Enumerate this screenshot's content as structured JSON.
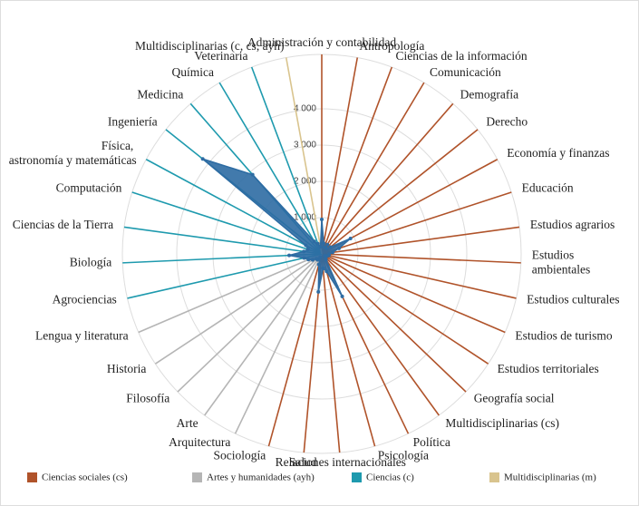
{
  "chart_data": {
    "type": "radar",
    "categories": [
      "Administración y contabilidad",
      "Antropología",
      "Ciencias de la información",
      "Comunicación",
      "Demografía",
      "Derecho",
      "Economía y finanzas",
      "Educación",
      "Estudios agrarios",
      "Estudios ambientales",
      "Estudios culturales",
      "Estudios de turismo",
      "Estudios territoriales",
      "Geografía social",
      "Multidisciplinarias (cs)",
      "Política",
      "Psicología",
      "Relaciones internacionales",
      "Salud",
      "Sociología",
      "Arquitectura",
      "Arte",
      "Filosofía",
      "Historia",
      "Lengua y literatura",
      "Agrociencias",
      "Biología",
      "Ciencias de la Tierra",
      "Computación",
      "Física, astronomía y matemáticas",
      "Ingeniería",
      "Medicina",
      "Química",
      "Veterinaria",
      "Multidisciplinarias (c, cs, ayh)"
    ],
    "values": [
      950,
      300,
      200,
      300,
      200,
      300,
      900,
      500,
      300,
      200,
      200,
      150,
      100,
      150,
      200,
      1300,
      500,
      400,
      1050,
      300,
      100,
      200,
      200,
      300,
      400,
      500,
      900,
      500,
      400,
      500,
      4200,
      2900,
      400,
      300,
      200
    ],
    "color": "#2e6ca3",
    "groups": [
      {
        "name": "Ciencias sociales (cs)",
        "color": "#b0532a"
      },
      {
        "name": "Artes y humanidades (ayh)",
        "color": "#b5b5b5"
      },
      {
        "name": "Ciencias (c)",
        "color": "#1e9aae"
      },
      {
        "name": "Multidisciplinarias (m)",
        "color": "#d9c48e"
      }
    ],
    "category_groups": [
      0,
      0,
      0,
      0,
      0,
      0,
      0,
      0,
      0,
      0,
      0,
      0,
      0,
      0,
      0,
      0,
      0,
      0,
      0,
      0,
      1,
      1,
      1,
      1,
      1,
      2,
      2,
      2,
      2,
      2,
      2,
      2,
      2,
      2,
      3
    ],
    "ylim": [
      0,
      5500
    ],
    "yticks": [
      {
        "value": 1000,
        "label": "1 000"
      },
      {
        "value": 2000,
        "label": "2 000"
      },
      {
        "value": 3000,
        "label": "3 000"
      },
      {
        "value": 4000,
        "label": "4 000"
      }
    ],
    "grid": true
  }
}
